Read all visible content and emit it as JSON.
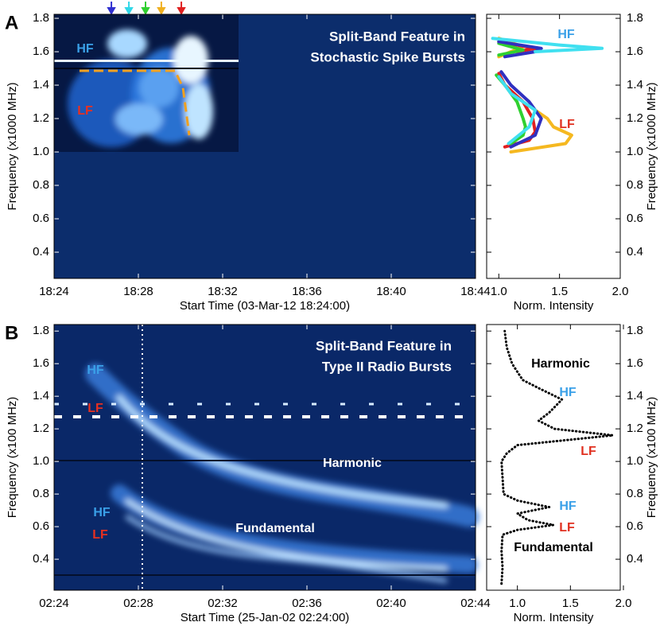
{
  "chart_data": [
    {
      "type": "spectrogram",
      "panel_label": "A",
      "xlabel": "Start Time (03-Mar-12 18:24:00)",
      "ylabel": "Frequency (x1000 MHz)",
      "xlim": [
        0,
        20
      ],
      "xticks": [
        {
          "value": 0,
          "label": "18:24"
        },
        {
          "value": 4,
          "label": "18:28"
        },
        {
          "value": 8,
          "label": "18:32"
        },
        {
          "value": 12,
          "label": "18:36"
        },
        {
          "value": 16,
          "label": "18:40"
        },
        {
          "value": 20,
          "label": "18:44"
        }
      ],
      "ylim": [
        0.243,
        1.824
      ],
      "yticks": [
        1.8,
        1.6,
        1.4,
        1.2,
        {
          "value": 1,
          "label": "1.0"
        },
        0.8,
        0.6,
        0.4
      ],
      "annotations": [
        "Split-Band Feature in",
        "Stochastic Spike Bursts",
        "HF",
        "LF"
      ],
      "annotation_colors": [
        "#ffffff",
        "#ffffff",
        "#3aa0e8",
        "#e83020"
      ],
      "markers": {
        "x": [
          2.72,
          3.55,
          4.34,
          5.09,
          6.04
        ],
        "colors": [
          "#3030d0",
          "#30d8e8",
          "#30d030",
          "#f0b020",
          "#e02020"
        ]
      }
    },
    {
      "type": "profile",
      "xlabel": "Norm. Intensity",
      "ylabel": "Frequency (x1000 MHz)",
      "xlim": [
        0.9,
        2.0
      ],
      "xticks": [
        {
          "value": 1,
          "label": "1.0"
        },
        1.5,
        {
          "value": 2,
          "label": "2.0"
        }
      ],
      "ylim": [
        0.243,
        1.824
      ],
      "yticks": [
        1.8,
        1.6,
        1.4,
        1.2,
        {
          "value": 1,
          "label": "1.0"
        },
        0.8,
        0.6,
        0.4
      ],
      "annotations": [
        "HF",
        "LF"
      ],
      "annotation_colors": [
        "#3aa0e8",
        "#e03020"
      ],
      "series": [
        {
          "color": "#f5b820",
          "y": [
            1.0,
            1.05,
            1.1,
            1.15,
            1.2,
            1.3,
            1.4,
            1.45,
            null,
            1.57,
            1.6,
            1.63,
            1.68
          ],
          "x": [
            1.1,
            1.55,
            1.6,
            1.45,
            1.4,
            1.2,
            1.05,
            1.0,
            null,
            1.0,
            1.1,
            1.2,
            1.0
          ]
        },
        {
          "color": "#e02020",
          "y": [
            1.03,
            1.07,
            1.12,
            1.2,
            1.3,
            1.4,
            1.47,
            null,
            1.6,
            1.62,
            1.66
          ],
          "x": [
            1.05,
            1.25,
            1.3,
            1.28,
            1.2,
            1.05,
            1.0,
            null,
            1.15,
            1.3,
            1.0
          ]
        },
        {
          "color": "#30d030",
          "y": [
            1.05,
            1.1,
            1.15,
            1.2,
            1.3,
            1.4,
            1.46,
            null,
            1.58,
            1.61,
            1.65
          ],
          "x": [
            1.1,
            1.2,
            1.22,
            1.2,
            1.15,
            1.05,
            0.98,
            null,
            1.0,
            1.2,
            1.0
          ]
        },
        {
          "color": "#3030c0",
          "y": [
            1.03,
            1.1,
            1.2,
            1.3,
            1.4,
            1.48,
            null,
            1.57,
            1.6,
            1.62,
            1.66
          ],
          "x": [
            1.1,
            1.3,
            1.35,
            1.25,
            1.1,
            1.02,
            null,
            1.05,
            1.3,
            1.35,
            1.0
          ]
        },
        {
          "color": "#40e0f0",
          "y": [
            1.05,
            1.15,
            1.25,
            1.35,
            1.45,
            null,
            1.6,
            1.62,
            1.64,
            1.68
          ],
          "x": [
            1.08,
            1.25,
            1.3,
            1.1,
            1.0,
            null,
            1.3,
            1.85,
            1.5,
            0.95
          ]
        }
      ]
    },
    {
      "type": "spectrogram",
      "panel_label": "B",
      "xlabel": "Start Time (25-Jan-02 02:24:00)",
      "ylabel": "Frequency (x100 MHz)",
      "xlim": [
        0,
        20
      ],
      "xticks": [
        {
          "value": 0,
          "label": "02:24"
        },
        {
          "value": 4,
          "label": "02:28"
        },
        {
          "value": 8,
          "label": "02:32"
        },
        {
          "value": 12,
          "label": "02:36"
        },
        {
          "value": 16,
          "label": "02:40"
        },
        {
          "value": 20,
          "label": "02:44"
        }
      ],
      "ylim": [
        0.21,
        1.84
      ],
      "yticks": [
        1.8,
        1.6,
        1.4,
        1.2,
        {
          "value": 1,
          "label": "1.0"
        },
        0.8,
        0.6,
        0.4
      ],
      "annotations": [
        "Split-Band Feature in",
        "Type II Radio Bursts",
        "HF",
        "LF",
        "Harmonic",
        "HF",
        "LF",
        "Fundamental"
      ],
      "annotation_colors": [
        "#ffffff",
        "#ffffff",
        "#3aa0e8",
        "#e83020",
        "#ffffff",
        "#3aa0e8",
        "#e83020",
        "#ffffff"
      ]
    },
    {
      "type": "profile",
      "xlabel": "Norm. Intensity",
      "ylabel": "Frequency (x100 MHz)",
      "xlim": [
        0.71,
        1.97
      ],
      "xticks": [
        {
          "value": 1,
          "label": "1.0"
        },
        1.5,
        {
          "value": 2,
          "label": "2.0"
        }
      ],
      "ylim": [
        0.21,
        1.84
      ],
      "yticks": [
        1.8,
        1.6,
        1.4,
        1.2,
        {
          "value": 1,
          "label": "1.0"
        },
        0.8,
        0.6,
        0.4
      ],
      "annotations": [
        "Harmonic",
        "HF",
        "LF",
        "HF",
        "LF",
        "Fundamental"
      ],
      "annotation_colors": [
        "#000000",
        "#3aa0e8",
        "#e03020",
        "#3aa0e8",
        "#e03020",
        "#000000"
      ],
      "series": [
        {
          "color": "#000000",
          "dotted": true,
          "y": [
            0.25,
            0.35,
            0.45,
            0.55,
            0.58,
            0.61,
            0.64,
            0.68,
            0.72,
            0.76,
            0.8,
            0.9,
            1.0,
            1.05,
            1.1,
            1.16,
            1.2,
            1.25,
            1.3,
            1.38,
            1.45,
            1.5,
            1.6,
            1.7,
            1.8
          ],
          "x": [
            0.85,
            0.86,
            0.85,
            0.86,
            1.0,
            1.34,
            1.1,
            1.0,
            1.3,
            1.0,
            0.87,
            0.86,
            0.85,
            0.9,
            1.0,
            1.9,
            1.35,
            1.2,
            1.3,
            1.42,
            1.2,
            1.05,
            0.95,
            0.9,
            0.88
          ]
        }
      ]
    }
  ]
}
